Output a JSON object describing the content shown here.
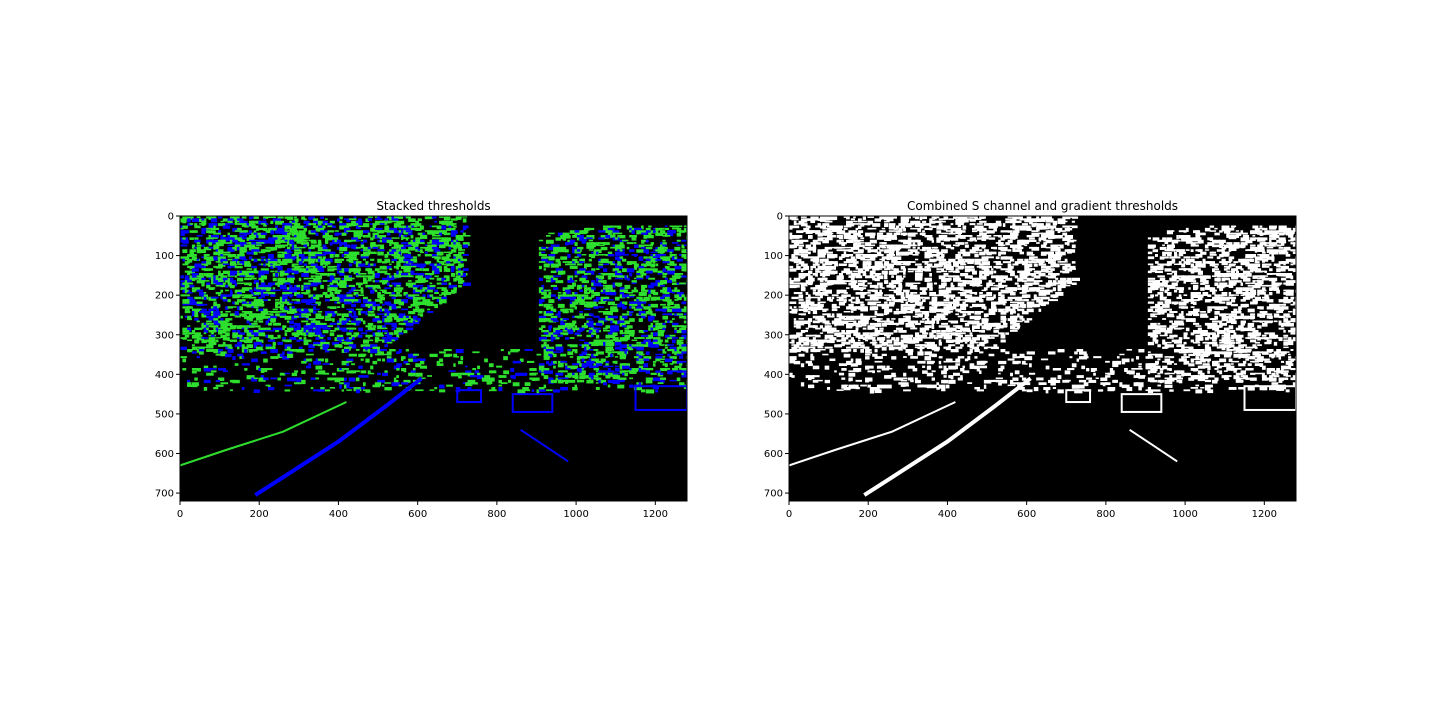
{
  "chart_data": [
    {
      "type": "image",
      "title": "Stacked thresholds",
      "image_size": [
        1280,
        720
      ],
      "xlim": [
        0,
        1280
      ],
      "ylim": [
        720,
        0
      ],
      "xticks": [
        0,
        200,
        400,
        600,
        800,
        1000,
        1200
      ],
      "yticks": [
        0,
        100,
        200,
        300,
        400,
        500,
        600,
        700
      ],
      "background_color": "#000000",
      "colors": {
        "gradient_threshold": "#2ee02e",
        "s_channel_threshold": "#0000ff"
      }
    },
    {
      "type": "image",
      "title": "Combined S channel and gradient thresholds",
      "image_size": [
        1280,
        720
      ],
      "xlim": [
        0,
        1280
      ],
      "ylim": [
        720,
        0
      ],
      "xticks": [
        0,
        200,
        400,
        600,
        800,
        1000,
        1200
      ],
      "yticks": [
        0,
        100,
        200,
        300,
        400,
        500,
        600,
        700
      ],
      "background_color": "#000000",
      "colors": {
        "binary_pixels": "#ffffff"
      }
    }
  ]
}
